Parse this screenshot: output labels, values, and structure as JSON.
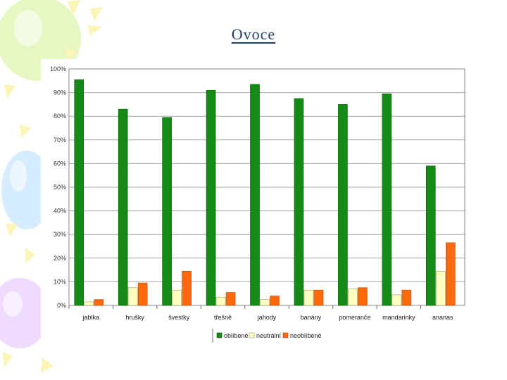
{
  "slide": {
    "title": "Ovoce"
  },
  "colors": {
    "oblibene": "#168a16",
    "neutralni": "#ffffc0",
    "neoblibene": "#ff6a0e",
    "grid": "#a8a8a8",
    "title": "#1f3f6e"
  },
  "chart_data": {
    "type": "bar",
    "title": "",
    "xlabel": "",
    "ylabel": "",
    "ylim": [
      0,
      100
    ],
    "yticks": [
      "0%",
      "10%",
      "20%",
      "30%",
      "40%",
      "50%",
      "60%",
      "70%",
      "80%",
      "90%",
      "100%"
    ],
    "grid": true,
    "legend_position": "bottom",
    "categories": [
      "jablka",
      "hrušky",
      "švestky",
      "třešně",
      "jahody",
      "banány",
      "pomeranče",
      "mandarinky",
      "ananas"
    ],
    "series": [
      {
        "name": "oblíbené",
        "values": [
          95.5,
          83,
          79.5,
          91,
          93.5,
          87.5,
          85,
          89.5,
          59
        ]
      },
      {
        "name": "neutrální",
        "values": [
          1.5,
          7.5,
          6.5,
          3.5,
          2.5,
          6.5,
          7,
          4.5,
          14.5
        ]
      },
      {
        "name": "neoblíbené",
        "values": [
          2.5,
          9.5,
          14.5,
          5.5,
          4,
          6.5,
          7.5,
          6.5,
          26.5
        ]
      }
    ]
  }
}
